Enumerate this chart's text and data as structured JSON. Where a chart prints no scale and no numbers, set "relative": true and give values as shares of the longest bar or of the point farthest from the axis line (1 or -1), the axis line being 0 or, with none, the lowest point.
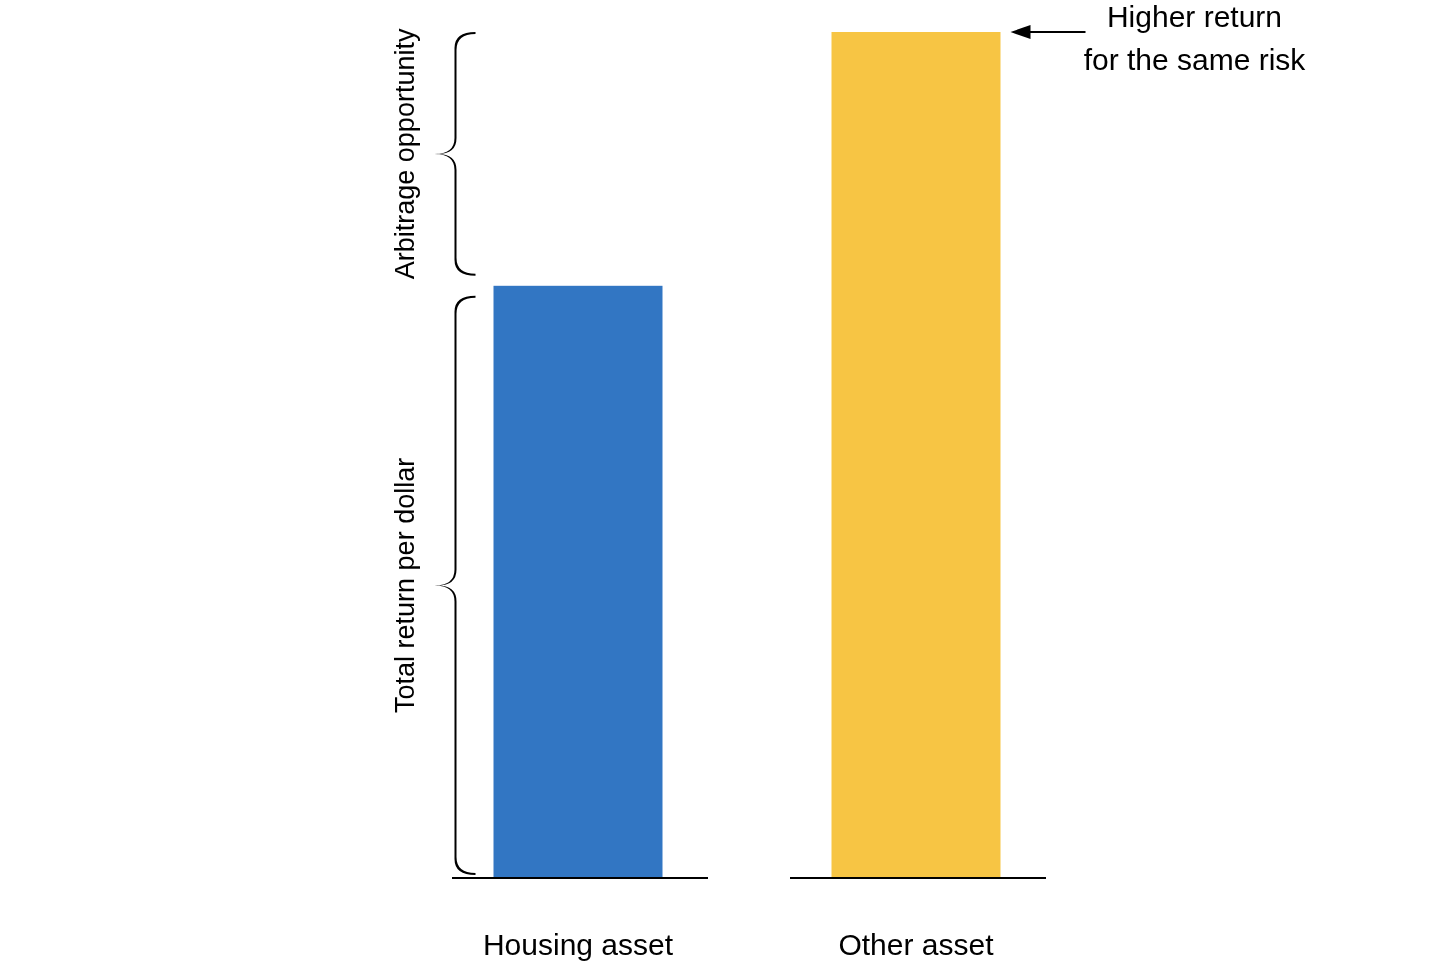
{
  "chart_data": {
    "type": "bar",
    "relative": true,
    "categories": [
      "Housing asset",
      "Other asset"
    ],
    "values": [
      0.7,
      1
    ],
    "colors": [
      "#3276c3",
      "#f7c544"
    ],
    "annotations": [
      "Higher return\nfor the same risk",
      "Arbitrage opportunity",
      "Total return per dollar"
    ]
  }
}
